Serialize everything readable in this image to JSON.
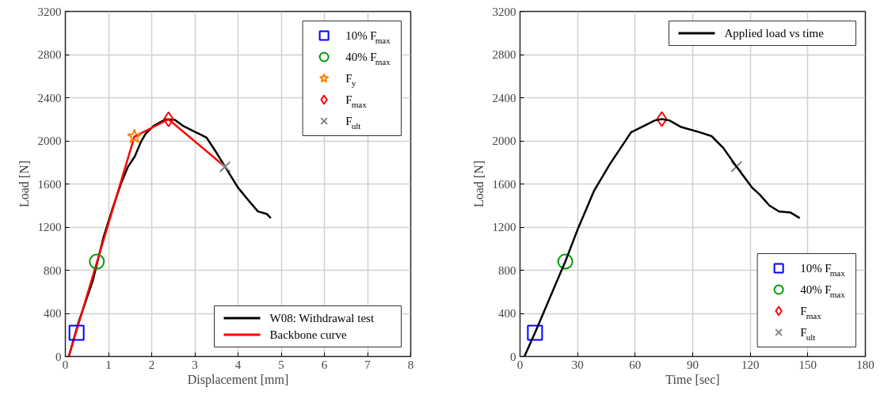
{
  "chart_data": [
    {
      "type": "line",
      "xlabel": "Displacement [mm]",
      "ylabel": "Load [N]",
      "xlim": [
        0,
        8
      ],
      "ylim": [
        0,
        3200
      ],
      "xticks": [
        0,
        1,
        2,
        3,
        4,
        5,
        6,
        7,
        8
      ],
      "yticks": [
        0,
        400,
        800,
        1200,
        1600,
        2000,
        2400,
        2800,
        3200
      ],
      "grid": true,
      "legend": "right",
      "series": [
        {
          "name": "W08: Withdrawal test",
          "color": "#000000",
          "x": [
            0.08,
            0.3,
            0.64,
            0.88,
            1.1,
            1.3,
            1.45,
            1.61,
            1.75,
            1.86,
            2.05,
            2.32,
            2.53,
            2.72,
            3.02,
            3.27,
            3.51,
            3.7,
            4.0,
            4.25,
            4.46,
            4.67,
            4.76
          ],
          "values": [
            0,
            310,
            710,
            1101,
            1380,
            1615,
            1760,
            1857,
            1990,
            2067,
            2140,
            2200,
            2197,
            2141,
            2080,
            2031,
            1884,
            1761,
            1566,
            1444,
            1346,
            1321,
            1284
          ]
        },
        {
          "name": "Backbone curve",
          "color": "#ff0000",
          "x": [
            0.08,
            1.6,
            2.39,
            3.7
          ],
          "values": [
            0,
            2040,
            2200,
            1760
          ]
        },
        {
          "name": "10% F$_{max}$",
          "color": "#0000ff",
          "type": "scatter",
          "marker": "square",
          "x": [
            0.26
          ],
          "values": [
            220
          ]
        },
        {
          "name": "40% F$_{max}$",
          "color": "#009900",
          "type": "scatter",
          "marker": "circle",
          "x": [
            0.73
          ],
          "values": [
            880
          ]
        },
        {
          "name": "F$_{y}$",
          "color": "#ff8000",
          "type": "scatter",
          "marker": "star",
          "x": [
            1.6
          ],
          "values": [
            2040
          ]
        },
        {
          "name": "F$_{max}$",
          "color": "#ff0000",
          "type": "scatter",
          "marker": "diamond",
          "x": [
            2.39
          ],
          "values": [
            2200
          ]
        },
        {
          "name": "F$_{ult}$",
          "color": "#808080",
          "type": "scatter",
          "marker": "cross",
          "x": [
            3.7
          ],
          "values": [
            1760
          ]
        }
      ]
    },
    {
      "type": "line",
      "xlabel": "Time [sec]",
      "ylabel": "Load [N]",
      "xlim": [
        0,
        180
      ],
      "ylim": [
        0,
        3200
      ],
      "xticks": [
        0,
        30,
        60,
        90,
        120,
        150,
        180
      ],
      "yticks": [
        0,
        400,
        800,
        1200,
        1600,
        2000,
        2400,
        2800,
        3200
      ],
      "grid": true,
      "legend": "right",
      "series": [
        {
          "name": "10% F$_{max}$",
          "color": "#0000ff",
          "type": "scatter",
          "marker": "square",
          "x": [
            7.8
          ],
          "values": [
            220
          ]
        },
        {
          "name": "40% F$_{max}$",
          "color": "#009900",
          "type": "scatter",
          "marker": "circle",
          "x": [
            23.6
          ],
          "values": [
            881
          ]
        },
        {
          "name": "F$_{max}$",
          "color": "#ff0000",
          "type": "scatter",
          "marker": "diamond",
          "x": [
            73.9
          ],
          "values": [
            2202
          ]
        },
        {
          "name": "F$_{ult}$",
          "color": "#808080",
          "type": "scatter",
          "marker": "cross",
          "x": [
            112.8
          ],
          "values": [
            1761
          ]
        },
        {
          "name": "Applied load vs time",
          "color": "#000000",
          "x": [
            2.3,
            7.8,
            15.4,
            19.5,
            23.6,
            30.5,
            38.7,
            46.9,
            57.9,
            64.8,
            70.3,
            73.9,
            77.8,
            84.0,
            93.6,
            99.8,
            106,
            112.8,
            121,
            125,
            130,
            135,
            141,
            145.8
          ],
          "values": [
            0,
            220,
            538,
            710,
            881,
            1199,
            1541,
            1786,
            2080,
            2141,
            2190,
            2202,
            2190,
            2128,
            2080,
            2044,
            1933,
            1761,
            1566,
            1500,
            1400,
            1345,
            1335,
            1284
          ]
        }
      ]
    }
  ]
}
